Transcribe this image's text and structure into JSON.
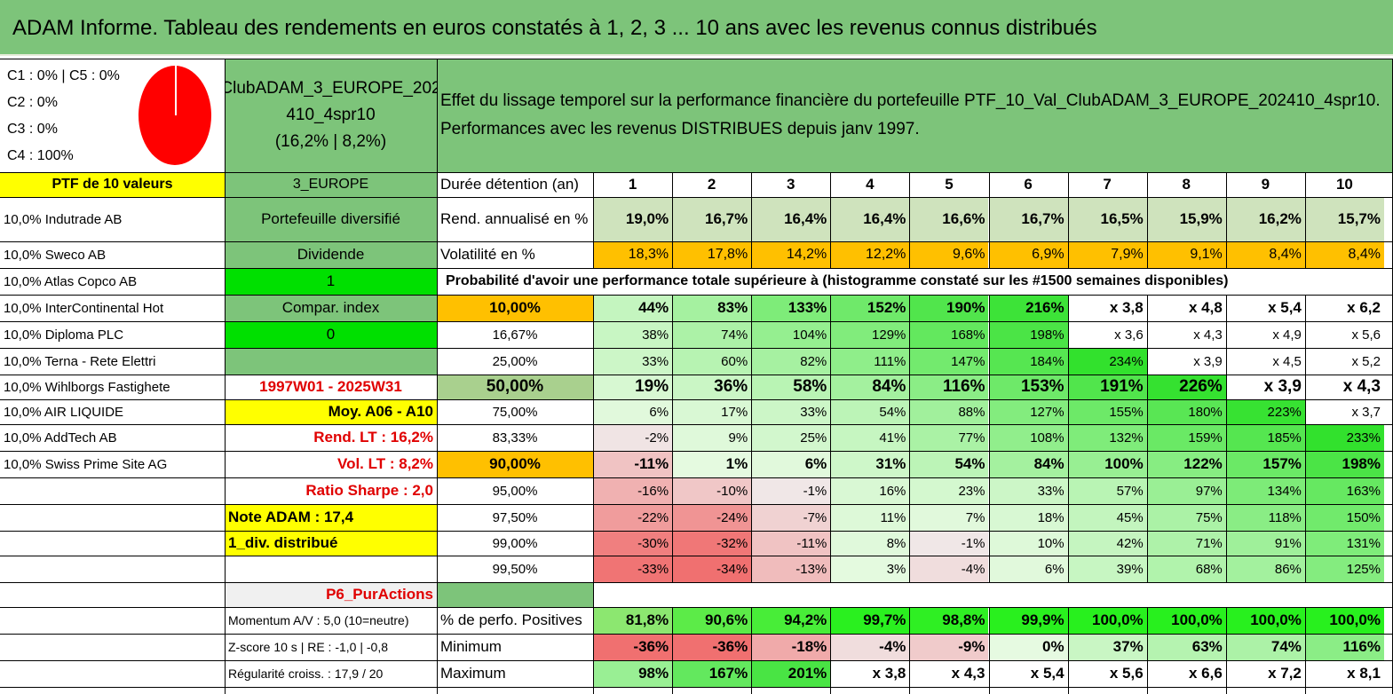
{
  "title": "ADAM Informe. Tableau des rendements en euros constatés à 1, 2, 3 ... 10 ans avec les revenus connus distribués",
  "categories": [
    "C1 : 0% | C5 : 0%",
    "C2 : 0%",
    "C3 : 0%",
    "C4 : 100%"
  ],
  "portfolio_name": [
    "ClubADAM_3_EUROPE_202",
    "410_4spr10",
    "(16,2% | 8,2%)"
  ],
  "effect_text": [
    "Effet du lissage temporel sur la performance financière du portefeuille PTF_10_Val_ClubADAM_3_EUROPE_202410_4spr10.",
    "Performances avec les revenus DISTRIBUES depuis janv 1997."
  ],
  "ptf_label": "PTF de 10 valeurs",
  "region": "3_EUROPE",
  "duration_label": "Durée détention (an)",
  "years": [
    "1",
    "2",
    "3",
    "4",
    "5",
    "6",
    "7",
    "8",
    "9",
    "10"
  ],
  "holdings": [
    "10,0% Indutrade AB",
    "10,0% Sweco AB",
    "10,0% Atlas Copco AB",
    "10,0% InterContinental Hot",
    "10,0% Diploma PLC",
    "10,0% Terna - Rete Elettri",
    "10,0% Wihlborgs Fastighete",
    "10,0% AIR LIQUIDE",
    "10,0% AddTech AB",
    "10,0% Swiss Prime Site AG"
  ],
  "side_col": [
    "Portefeuille diversifié",
    "Dividende",
    "1",
    "Compar. index",
    "0",
    "",
    "1997W01 - 2025W31",
    "Moy. A06 - A10",
    "Rend. LT : 16,2%",
    "Vol. LT : 8,2%",
    "Ratio Sharpe : 2,0",
    "Note ADAM : 17,4",
    "1_div. distribué",
    "",
    "P6_PurActions",
    "Momentum A/V : 5,0 (10=neutre)",
    "Z-score 10 s | RE : -1,0 | -0,8",
    "Régularité croiss. : 17,9 / 20"
  ],
  "rend_label": "Rend. annualisé en %",
  "rend": [
    "19,0%",
    "16,7%",
    "16,4%",
    "16,4%",
    "16,6%",
    "16,7%",
    "16,5%",
    "15,9%",
    "16,2%",
    "15,7%"
  ],
  "vol_label": "Volatilité en %",
  "vol": [
    "18,3%",
    "17,8%",
    "14,2%",
    "12,2%",
    "9,6%",
    "6,9%",
    "7,9%",
    "9,1%",
    "8,4%",
    "8,4%"
  ],
  "prob_title": "Probabilité d'avoir une performance totale supérieure à (histogramme constaté sur les #1500 semaines disponibles)",
  "prob_rows": [
    {
      "p": "10,00%",
      "v": [
        "44%",
        "83%",
        "133%",
        "152%",
        "190%",
        "216%",
        "x 3,8",
        "x 4,8",
        "x 5,4",
        "x 6,2"
      ]
    },
    {
      "p": "16,67%",
      "v": [
        "38%",
        "74%",
        "104%",
        "129%",
        "168%",
        "198%",
        "x 3,6",
        "x 4,3",
        "x 4,9",
        "x 5,6"
      ]
    },
    {
      "p": "25,00%",
      "v": [
        "33%",
        "60%",
        "82%",
        "111%",
        "147%",
        "184%",
        "234%",
        "x 3,9",
        "x 4,5",
        "x 5,2"
      ]
    },
    {
      "p": "50,00%",
      "v": [
        "19%",
        "36%",
        "58%",
        "84%",
        "116%",
        "153%",
        "191%",
        "226%",
        "x 3,9",
        "x 4,3"
      ]
    },
    {
      "p": "75,00%",
      "v": [
        "6%",
        "17%",
        "33%",
        "54%",
        "88%",
        "127%",
        "155%",
        "180%",
        "223%",
        "x 3,7"
      ]
    },
    {
      "p": "83,33%",
      "v": [
        "-2%",
        "9%",
        "25%",
        "41%",
        "77%",
        "108%",
        "132%",
        "159%",
        "185%",
        "233%"
      ]
    },
    {
      "p": "90,00%",
      "v": [
        "-11%",
        "1%",
        "6%",
        "31%",
        "54%",
        "84%",
        "100%",
        "122%",
        "157%",
        "198%"
      ]
    },
    {
      "p": "95,00%",
      "v": [
        "-16%",
        "-10%",
        "-1%",
        "16%",
        "23%",
        "33%",
        "57%",
        "97%",
        "134%",
        "163%"
      ]
    },
    {
      "p": "97,50%",
      "v": [
        "-22%",
        "-24%",
        "-7%",
        "11%",
        "7%",
        "18%",
        "45%",
        "75%",
        "118%",
        "150%"
      ]
    },
    {
      "p": "99,00%",
      "v": [
        "-30%",
        "-32%",
        "-11%",
        "8%",
        "-1%",
        "10%",
        "42%",
        "71%",
        "91%",
        "131%"
      ]
    },
    {
      "p": "99,50%",
      "v": [
        "-33%",
        "-34%",
        "-13%",
        "3%",
        "-4%",
        "6%",
        "39%",
        "68%",
        "86%",
        "125%"
      ]
    }
  ],
  "pos_label": "% de perfo. Positives",
  "pos": [
    "81,8%",
    "90,6%",
    "94,2%",
    "99,7%",
    "98,8%",
    "99,9%",
    "100,0%",
    "100,0%",
    "100,0%",
    "100,0%"
  ],
  "min_label": "Minimum",
  "min": [
    "-36%",
    "-36%",
    "-18%",
    "-4%",
    "-9%",
    "0%",
    "37%",
    "63%",
    "74%",
    "116%"
  ],
  "max_label": "Maximum",
  "max": [
    "98%",
    "167%",
    "201%",
    "x 3,8",
    "x 4,3",
    "x 5,4",
    "x 5,6",
    "x 6,6",
    "x 7,2",
    "x 8,1"
  ],
  "colors": {
    "header_green": "#7dc47a",
    "yellow": "#ffff00",
    "orange": "#ffc000",
    "bright_green": "#00e000",
    "red": "#ff0000"
  }
}
